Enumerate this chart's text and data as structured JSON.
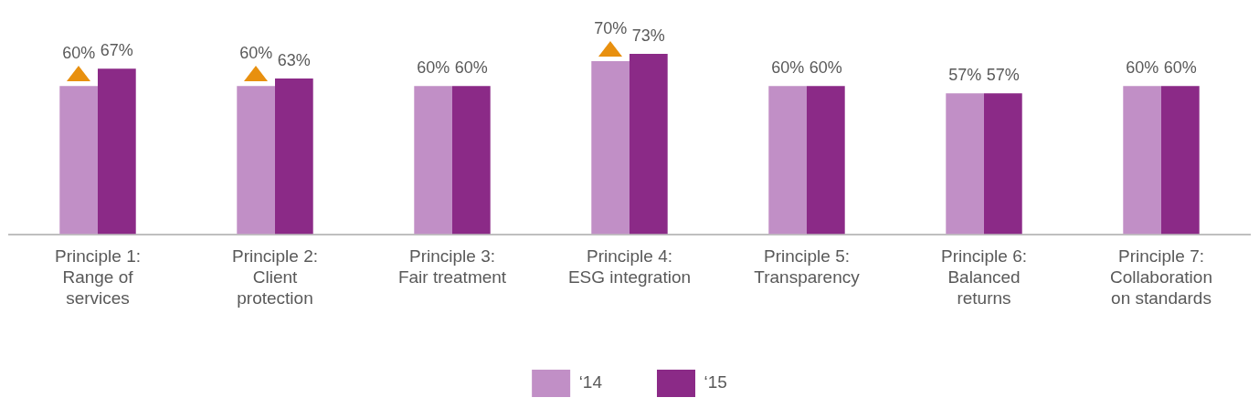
{
  "chart_data": {
    "type": "bar",
    "categories": [
      "Principle 1:\nRange of\nservices",
      "Principle 2:\nClient\nprotection",
      "Principle 3:\nFair treatment",
      "Principle 4:\nESG integration",
      "Principle 5:\nTransparency",
      "Principle 6:\nBalanced\nreturns",
      "Principle 7:\nCollaboration\non standards"
    ],
    "series": [
      {
        "name": "‘14",
        "color": "#c18fc6",
        "values": [
          60,
          60,
          60,
          70,
          60,
          57,
          60
        ],
        "value_labels": [
          "60%",
          "60%",
          "60%",
          "70%",
          "60%",
          "57%",
          "60%"
        ]
      },
      {
        "name": "‘15",
        "color": "#8b2a87",
        "values": [
          67,
          63,
          60,
          73,
          60,
          57,
          60
        ],
        "value_labels": [
          "67%",
          "63%",
          "60%",
          "73%",
          "60%",
          "57%",
          "60%"
        ]
      }
    ],
    "legend": "bottom"
  }
}
